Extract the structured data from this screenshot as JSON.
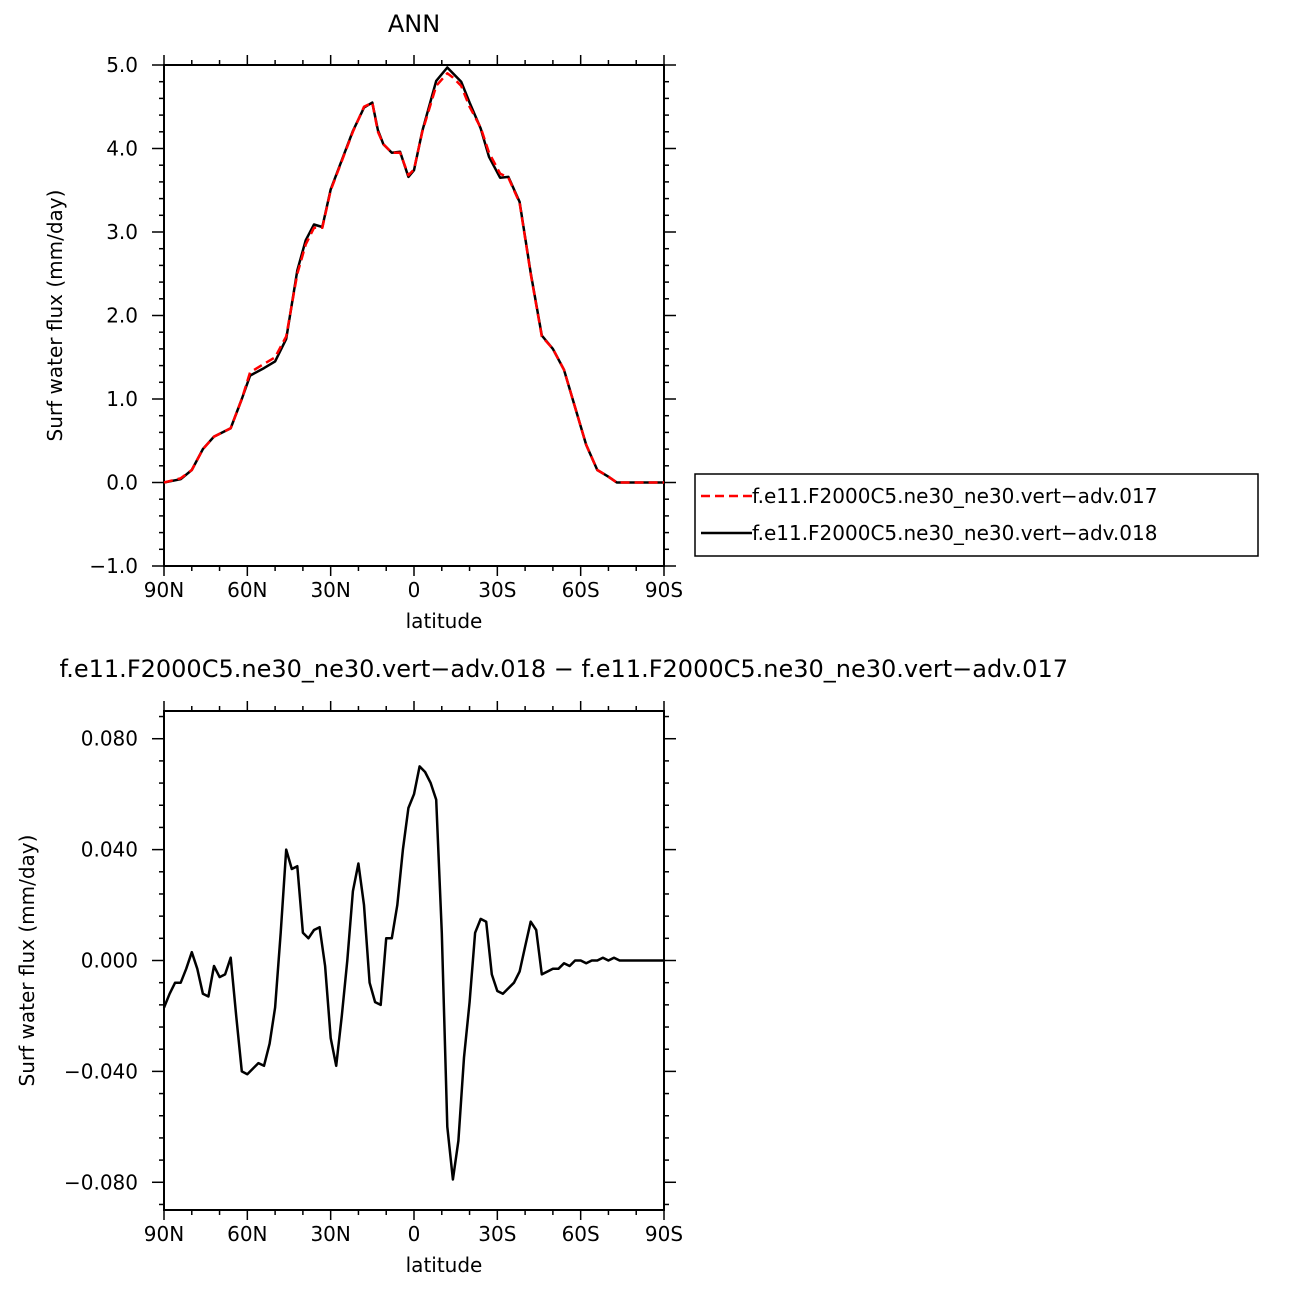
{
  "chart_data": [
    {
      "type": "line",
      "title": "ANN",
      "xlabel": "latitude",
      "ylabel": "Surf water flux (mm/day)",
      "xlim": [
        90,
        -90
      ],
      "ylim": [
        -1.0,
        5.0
      ],
      "x_ticks": [
        {
          "value": 90,
          "label": "90N"
        },
        {
          "value": 60,
          "label": "60N"
        },
        {
          "value": 30,
          "label": "30N"
        },
        {
          "value": 0,
          "label": "0"
        },
        {
          "value": -30,
          "label": "30S"
        },
        {
          "value": -60,
          "label": "60S"
        },
        {
          "value": -90,
          "label": "90S"
        }
      ],
      "y_ticks": [
        {
          "value": -1.0,
          "label": "−1.0"
        },
        {
          "value": 0.0,
          "label": "0.0"
        },
        {
          "value": 1.0,
          "label": "1.0"
        },
        {
          "value": 2.0,
          "label": "2.0"
        },
        {
          "value": 3.0,
          "label": "3.0"
        },
        {
          "value": 4.0,
          "label": "4.0"
        },
        {
          "value": 5.0,
          "label": "5.0"
        }
      ],
      "legend_position": "right",
      "series": [
        {
          "name": "f.e11.F2000C5.ne30_ne30.vert−adv.017",
          "color": "#ff0000",
          "dash": true,
          "x": [
            90,
            84,
            80,
            76,
            72,
            66,
            62,
            59,
            54,
            50,
            46,
            42,
            39,
            36,
            33,
            30,
            26,
            22,
            18,
            15,
            13,
            11,
            8,
            5,
            2,
            0,
            -3,
            -8,
            -12,
            -14,
            -17,
            -20,
            -24,
            -27,
            -31,
            -34,
            -38,
            -42,
            -46,
            -50,
            -54,
            -58,
            -62,
            -66,
            -70,
            -73,
            -76,
            -79,
            -82,
            -86,
            -90
          ],
          "y": [
            0.0,
            0.05,
            0.15,
            0.4,
            0.55,
            0.65,
            1.0,
            1.32,
            1.42,
            1.5,
            1.75,
            2.5,
            2.85,
            3.05,
            3.05,
            3.5,
            3.85,
            4.2,
            4.5,
            4.55,
            4.2,
            4.05,
            3.95,
            3.95,
            3.68,
            3.75,
            4.2,
            4.75,
            4.9,
            4.85,
            4.75,
            4.5,
            4.25,
            3.95,
            3.7,
            3.65,
            3.35,
            2.5,
            1.75,
            1.6,
            1.35,
            0.9,
            0.45,
            0.15,
            0.07,
            0.0,
            0.0,
            0.0,
            0.0,
            0.0,
            0.0
          ]
        },
        {
          "name": "f.e11.F2000C5.ne30_ne30.vert−adv.018",
          "color": "#000000",
          "dash": false,
          "x": [
            90,
            84,
            80,
            76,
            72,
            66,
            62,
            59,
            54,
            50,
            46,
            42,
            39,
            36,
            33,
            30,
            26,
            22,
            18,
            15,
            13,
            11,
            8,
            5,
            2,
            0,
            -3,
            -8,
            -12,
            -14,
            -17,
            -20,
            -24,
            -27,
            -31,
            -34,
            -38,
            -42,
            -46,
            -50,
            -54,
            -58,
            -62,
            -66,
            -70,
            -73,
            -76,
            -79,
            -82,
            -86,
            -90
          ],
          "y": [
            0.0,
            0.04,
            0.15,
            0.4,
            0.55,
            0.65,
            1.0,
            1.28,
            1.37,
            1.45,
            1.72,
            2.54,
            2.9,
            3.09,
            3.06,
            3.51,
            3.86,
            4.21,
            4.49,
            4.55,
            4.22,
            4.05,
            3.95,
            3.96,
            3.66,
            3.74,
            4.21,
            4.81,
            4.97,
            4.9,
            4.8,
            4.55,
            4.24,
            3.9,
            3.65,
            3.66,
            3.36,
            2.51,
            1.76,
            1.6,
            1.35,
            0.9,
            0.45,
            0.15,
            0.07,
            0.0,
            0.0,
            0.0,
            0.0,
            0.0,
            0.0
          ]
        }
      ]
    },
    {
      "type": "line",
      "title": "f.e11.F2000C5.ne30_ne30.vert−adv.018 − f.e11.F2000C5.ne30_ne30.vert−adv.017",
      "xlabel": "latitude",
      "ylabel": "Surf water flux (mm/day)",
      "xlim": [
        90,
        -90
      ],
      "ylim": [
        -0.09,
        0.09
      ],
      "x_ticks": [
        {
          "value": 90,
          "label": "90N"
        },
        {
          "value": 60,
          "label": "60N"
        },
        {
          "value": 30,
          "label": "30N"
        },
        {
          "value": 0,
          "label": "0"
        },
        {
          "value": -30,
          "label": "30S"
        },
        {
          "value": -60,
          "label": "60S"
        },
        {
          "value": -90,
          "label": "90S"
        }
      ],
      "y_ticks": [
        {
          "value": -0.08,
          "label": "−0.080"
        },
        {
          "value": -0.04,
          "label": "−0.040"
        },
        {
          "value": 0.0,
          "label": "0.000"
        },
        {
          "value": 0.04,
          "label": "0.040"
        },
        {
          "value": 0.08,
          "label": "0.080"
        }
      ],
      "series": [
        {
          "color": "#000000",
          "x": [
            90,
            88,
            86,
            84,
            82,
            80,
            78,
            76,
            74,
            72,
            70,
            68,
            66,
            64,
            62,
            60,
            58,
            56,
            54,
            52,
            50,
            48,
            46,
            44,
            42,
            40,
            38,
            36,
            34,
            32,
            30,
            28,
            26,
            24,
            22,
            20,
            18,
            16,
            14,
            12,
            10,
            8,
            6,
            4,
            2,
            0,
            -2,
            -4,
            -6,
            -8,
            -10,
            -12,
            -14,
            -16,
            -17,
            -18,
            -20,
            -22,
            -24,
            -26,
            -28,
            -30,
            -32,
            -34,
            -36,
            -38,
            -40,
            -42,
            -44,
            -46,
            -48,
            -50,
            -52,
            -54,
            -56,
            -58,
            -60,
            -62,
            -64,
            -66,
            -68,
            -70,
            -72,
            -74,
            -76,
            -78,
            -80,
            -82,
            -84,
            -86,
            -88,
            -90
          ],
          "y": [
            -0.017,
            -0.012,
            -0.008,
            -0.008,
            -0.003,
            0.003,
            -0.003,
            -0.012,
            -0.013,
            -0.002,
            -0.006,
            -0.005,
            0.001,
            -0.02,
            -0.04,
            -0.041,
            -0.039,
            -0.037,
            -0.038,
            -0.03,
            -0.017,
            0.01,
            0.04,
            0.033,
            0.034,
            0.01,
            0.008,
            0.011,
            0.012,
            -0.002,
            -0.028,
            -0.038,
            -0.02,
            0.0,
            0.025,
            0.035,
            0.02,
            -0.008,
            -0.015,
            -0.016,
            0.008,
            0.008,
            0.02,
            0.04,
            0.055,
            0.06,
            0.07,
            0.068,
            0.064,
            0.058,
            0.01,
            -0.06,
            -0.079,
            -0.065,
            -0.05,
            -0.035,
            -0.015,
            0.01,
            0.015,
            0.014,
            -0.005,
            -0.011,
            -0.012,
            -0.01,
            -0.008,
            -0.004,
            0.005,
            0.014,
            0.011,
            -0.005,
            -0.004,
            -0.003,
            -0.003,
            -0.001,
            -0.002,
            0.0,
            0.0,
            -0.001,
            0.0,
            0.0,
            0.001,
            0.0,
            0.001,
            0.0,
            0.0,
            0.0,
            0.0,
            0.0,
            0.0,
            0.0,
            0.0,
            0.0
          ]
        }
      ]
    }
  ]
}
